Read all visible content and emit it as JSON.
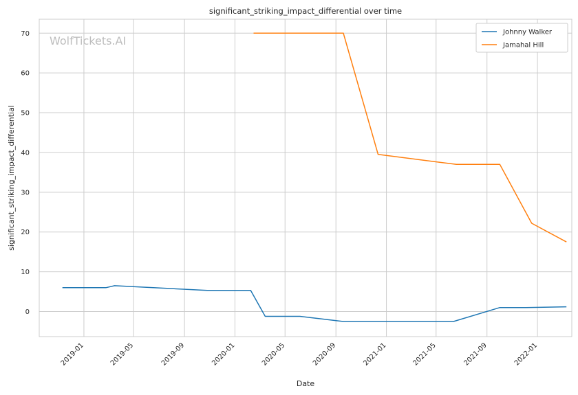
{
  "watermark": "WolfTickets.AI",
  "chart_data": {
    "type": "line",
    "title": "significant_striking_impact_differential over time",
    "xlabel": "Date",
    "ylabel": "significant_striking_impact_differential",
    "xlim": [
      "2018-09-15",
      "2022-03-25"
    ],
    "ylim": [
      -6.3,
      73.5
    ],
    "x_ticks": [
      "2019-01",
      "2019-05",
      "2019-09",
      "2020-01",
      "2020-05",
      "2020-09",
      "2021-01",
      "2021-05",
      "2021-09",
      "2022-01"
    ],
    "y_ticks": [
      0,
      10,
      20,
      30,
      40,
      50,
      60,
      70
    ],
    "grid": true,
    "legend_position": "top-right",
    "series": [
      {
        "name": "Johnny Walker",
        "color": "#1f77b4",
        "points": [
          [
            "2018-11-10",
            6.0
          ],
          [
            "2019-02-23",
            6.0
          ],
          [
            "2019-03-16",
            6.5
          ],
          [
            "2019-10-26",
            5.3
          ],
          [
            "2020-02-08",
            5.3
          ],
          [
            "2020-03-14",
            -1.2
          ],
          [
            "2020-06-06",
            -1.2
          ],
          [
            "2020-09-19",
            -2.5
          ],
          [
            "2021-06-12",
            -2.5
          ],
          [
            "2021-10-02",
            1.0
          ],
          [
            "2021-12-04",
            1.0
          ],
          [
            "2022-03-12",
            1.2
          ]
        ]
      },
      {
        "name": "Jamahal Hill",
        "color": "#ff7f0e",
        "points": [
          [
            "2020-02-15",
            70.0
          ],
          [
            "2020-09-19",
            70.0
          ],
          [
            "2020-12-12",
            39.5
          ],
          [
            "2021-06-19",
            37.0
          ],
          [
            "2021-10-02",
            37.0
          ],
          [
            "2021-12-18",
            22.2
          ],
          [
            "2022-03-12",
            17.5
          ]
        ]
      }
    ]
  }
}
